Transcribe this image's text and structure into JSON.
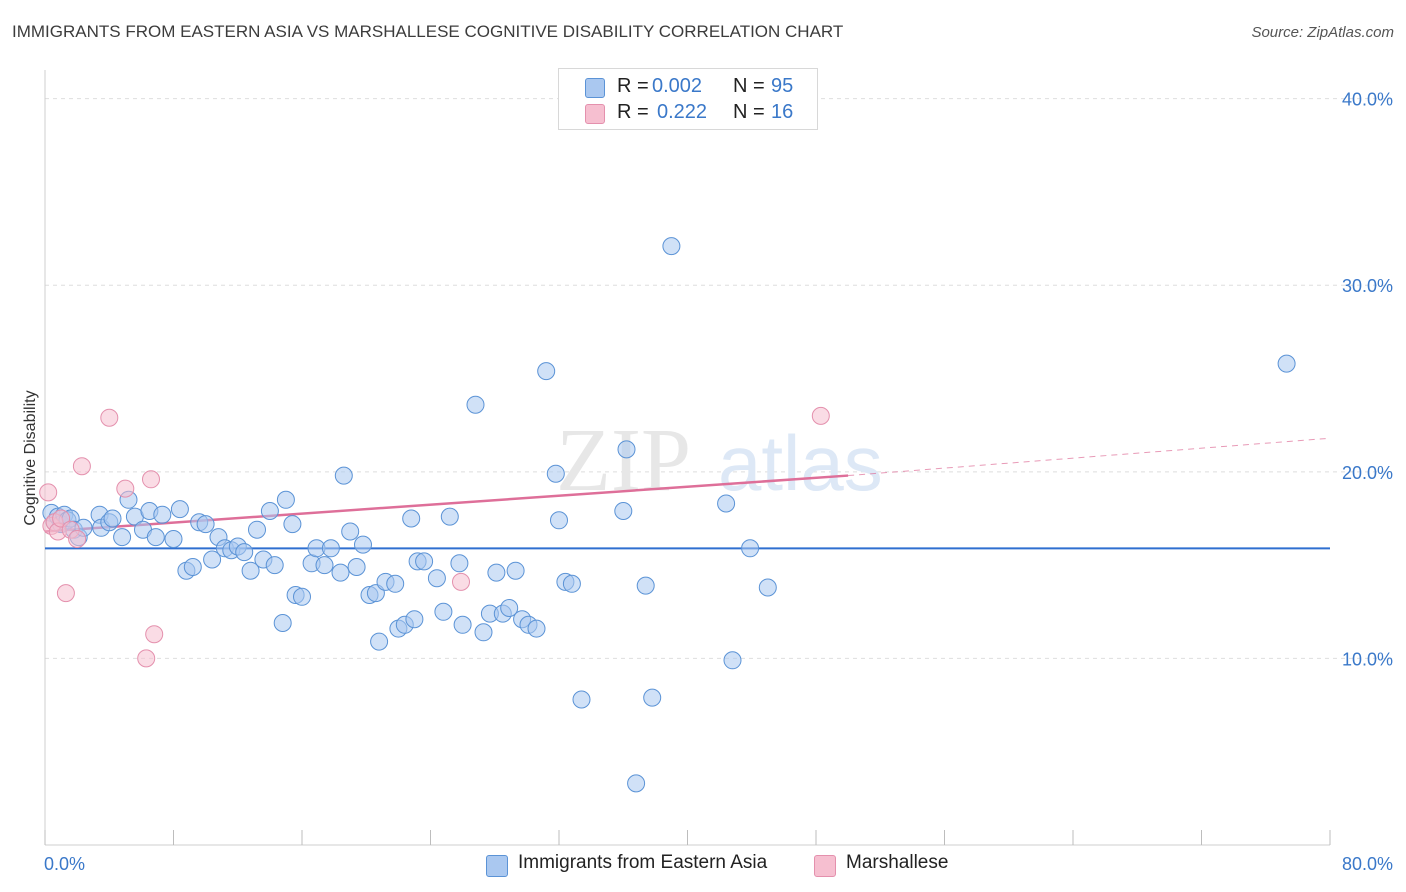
{
  "header": {
    "title": "IMMIGRANTS FROM EASTERN ASIA VS MARSHALLESE COGNITIVE DISABILITY CORRELATION CHART",
    "source": "Source: ZipAtlas.com"
  },
  "watermark": {
    "zip": "ZIP",
    "atlas": "atlas"
  },
  "legend_top": {
    "rows": [
      {
        "r_label": "R =",
        "r_value": "0.002",
        "n_label": "N =",
        "n_value": "95"
      },
      {
        "r_label": "R =",
        "r_value": "0.222",
        "n_label": "N =",
        "n_value": "16"
      }
    ]
  },
  "legend_bottom": {
    "items": [
      {
        "label": "Immigrants from Eastern Asia"
      },
      {
        "label": "Marshallese"
      }
    ]
  },
  "colors": {
    "blue_fill": "#aac8f0",
    "blue_stroke": "#5b93d6",
    "blue_line": "#2f6fd0",
    "pink_fill": "#f6bfd0",
    "pink_stroke": "#e490ad",
    "pink_line": "#de6f99",
    "grid": "#dedede",
    "axis_label": "#3a78c9"
  },
  "chart_data": {
    "type": "scatter",
    "title": "IMMIGRANTS FROM EASTERN ASIA VS MARSHALLESE COGNITIVE DISABILITY CORRELATION CHART",
    "xlabel": "",
    "ylabel": "Cognitive Disability",
    "xlim": [
      0,
      80
    ],
    "ylim": [
      0,
      41
    ],
    "x_tick_labels": [
      {
        "value": 0,
        "label": "0.0%"
      },
      {
        "value": 80,
        "label": "80.0%"
      }
    ],
    "y_tick_labels": [
      {
        "value": 10,
        "label": "10.0%"
      },
      {
        "value": 20,
        "label": "20.0%"
      },
      {
        "value": 30,
        "label": "30.0%"
      },
      {
        "value": 40,
        "label": "40.0%"
      }
    ],
    "grid": true,
    "legend_position": "top-center",
    "series": [
      {
        "name": "Immigrants from Eastern Asia",
        "color": "#aac8f0",
        "trend": {
          "x": [
            0,
            80
          ],
          "y": [
            15.9,
            15.9
          ],
          "style": "solid"
        },
        "points": [
          [
            0.4,
            17.8
          ],
          [
            0.6,
            17.3
          ],
          [
            0.8,
            17.6
          ],
          [
            1.0,
            17.2
          ],
          [
            1.2,
            17.7
          ],
          [
            1.4,
            17.4
          ],
          [
            1.6,
            17.5
          ],
          [
            1.8,
            16.9
          ],
          [
            2.1,
            16.5
          ],
          [
            2.4,
            17.0
          ],
          [
            3.4,
            17.7
          ],
          [
            3.5,
            17.0
          ],
          [
            4.0,
            17.3
          ],
          [
            4.2,
            17.5
          ],
          [
            4.8,
            16.5
          ],
          [
            5.2,
            18.5
          ],
          [
            5.6,
            17.6
          ],
          [
            6.1,
            16.9
          ],
          [
            6.5,
            17.9
          ],
          [
            6.9,
            16.5
          ],
          [
            7.3,
            17.7
          ],
          [
            8.0,
            16.4
          ],
          [
            8.4,
            18.0
          ],
          [
            8.8,
            14.7
          ],
          [
            9.2,
            14.9
          ],
          [
            9.6,
            17.3
          ],
          [
            10.0,
            17.2
          ],
          [
            10.4,
            15.3
          ],
          [
            10.8,
            16.5
          ],
          [
            11.2,
            15.9
          ],
          [
            11.6,
            15.8
          ],
          [
            12.0,
            16.0
          ],
          [
            12.4,
            15.7
          ],
          [
            12.8,
            14.7
          ],
          [
            13.2,
            16.9
          ],
          [
            13.6,
            15.3
          ],
          [
            14.0,
            17.9
          ],
          [
            14.3,
            15.0
          ],
          [
            15.0,
            18.5
          ],
          [
            15.4,
            17.2
          ],
          [
            15.6,
            13.4
          ],
          [
            16.0,
            13.3
          ],
          [
            14.8,
            11.9
          ],
          [
            16.6,
            15.1
          ],
          [
            16.9,
            15.9
          ],
          [
            17.4,
            15.0
          ],
          [
            17.8,
            15.9
          ],
          [
            18.4,
            14.6
          ],
          [
            18.6,
            19.8
          ],
          [
            19.0,
            16.8
          ],
          [
            19.4,
            14.9
          ],
          [
            19.8,
            16.1
          ],
          [
            20.2,
            13.4
          ],
          [
            20.6,
            13.5
          ],
          [
            20.8,
            10.9
          ],
          [
            21.2,
            14.1
          ],
          [
            21.8,
            14.0
          ],
          [
            22.0,
            11.6
          ],
          [
            22.4,
            11.8
          ],
          [
            22.8,
            17.5
          ],
          [
            23.0,
            12.1
          ],
          [
            23.2,
            15.2
          ],
          [
            23.6,
            15.2
          ],
          [
            24.4,
            14.3
          ],
          [
            24.8,
            12.5
          ],
          [
            25.2,
            17.6
          ],
          [
            25.8,
            15.1
          ],
          [
            26.0,
            11.8
          ],
          [
            26.8,
            23.6
          ],
          [
            27.3,
            11.4
          ],
          [
            27.7,
            12.4
          ],
          [
            28.1,
            14.6
          ],
          [
            28.5,
            12.4
          ],
          [
            28.9,
            12.7
          ],
          [
            29.3,
            14.7
          ],
          [
            29.7,
            12.1
          ],
          [
            30.1,
            11.8
          ],
          [
            30.6,
            11.6
          ],
          [
            31.2,
            25.4
          ],
          [
            31.8,
            19.9
          ],
          [
            32.0,
            17.4
          ],
          [
            32.4,
            14.1
          ],
          [
            32.8,
            14.0
          ],
          [
            33.4,
            7.8
          ],
          [
            36.0,
            17.9
          ],
          [
            36.2,
            21.2
          ],
          [
            36.8,
            3.3
          ],
          [
            37.4,
            13.9
          ],
          [
            37.8,
            7.9
          ],
          [
            39.0,
            32.1
          ],
          [
            42.4,
            18.3
          ],
          [
            42.8,
            9.9
          ],
          [
            43.9,
            15.9
          ],
          [
            45.0,
            13.8
          ],
          [
            77.3,
            25.8
          ]
        ]
      },
      {
        "name": "Marshallese",
        "color": "#f6bfd0",
        "trend": {
          "x": [
            0,
            50
          ],
          "y": [
            16.8,
            19.8
          ],
          "style": "solid",
          "extension_x": [
            50,
            80
          ],
          "extension_y": [
            19.8,
            21.8
          ],
          "extension_style": "dashed"
        },
        "points": [
          [
            0.2,
            18.9
          ],
          [
            0.4,
            17.1
          ],
          [
            0.6,
            17.3
          ],
          [
            0.8,
            16.8
          ],
          [
            1.0,
            17.5
          ],
          [
            1.3,
            13.5
          ],
          [
            1.6,
            16.9
          ],
          [
            2.0,
            16.4
          ],
          [
            2.3,
            20.3
          ],
          [
            4.0,
            22.9
          ],
          [
            5.0,
            19.1
          ],
          [
            6.3,
            10.0
          ],
          [
            6.6,
            19.6
          ],
          [
            6.8,
            11.3
          ],
          [
            25.9,
            14.1
          ],
          [
            48.3,
            23.0
          ]
        ]
      }
    ]
  }
}
